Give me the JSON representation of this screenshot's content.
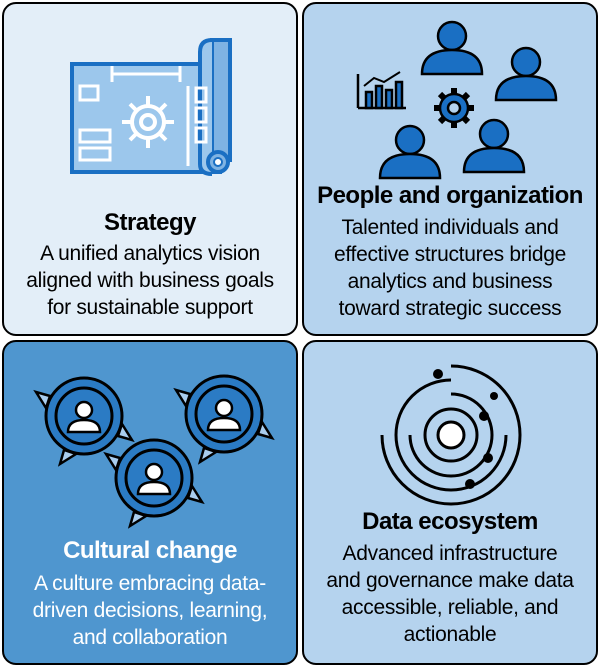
{
  "strategy": {
    "title": "Strategy",
    "lines": [
      "A unified analytics vision",
      "aligned with business goals",
      "for sustainable support"
    ],
    "icon": "blueprint-gear-icon"
  },
  "people": {
    "title": "People and organization",
    "lines": [
      "Talented individuals and",
      "effective structures bridge",
      "analytics and business",
      "toward strategic success"
    ],
    "icon": "people-gear-chart-icon"
  },
  "culture": {
    "title": "Cultural change",
    "lines": [
      "A culture embracing data-",
      "driven decisions, learning,",
      "and collaboration"
    ],
    "icon": "cycle-people-icon"
  },
  "ecosystem": {
    "title": "Data ecosystem",
    "lines": [
      "Advanced infrastructure",
      "and governance make data",
      "accessible, reliable, and",
      "actionable"
    ],
    "icon": "orbit-rings-icon"
  },
  "colors": {
    "icon_blue": "#1a6fc3",
    "tile_light": "#e3eef8",
    "tile_mid": "#b5d3ee",
    "tile_dark": "#4f96cf"
  }
}
